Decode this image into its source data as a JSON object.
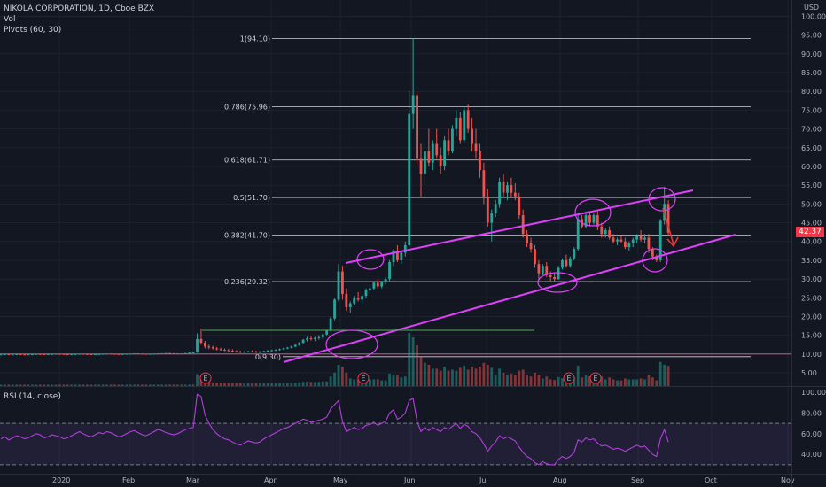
{
  "header": {
    "symbol_line": "NIKOLA CORPORATION, 1D, Cboe BZX",
    "vol_label": "Vol",
    "pivots_label": "Pivots (60, 30)",
    "currency": "USD",
    "last_price": "42.37"
  },
  "rsi": {
    "label": "RSI (14, close)"
  },
  "colors": {
    "up": "#26a69a",
    "down": "#ef5350",
    "trendline": "#e040fb",
    "rsi_line": "#b23fdc",
    "background": "#131722"
  },
  "chart_data": {
    "type": "candlestick",
    "title": "NIKOLA CORPORATION, 1D, Cboe BZX",
    "price_ticks": [
      "100.00",
      "95.00",
      "90.00",
      "85.00",
      "80.00",
      "75.00",
      "70.00",
      "65.00",
      "60.00",
      "55.00",
      "50.00",
      "45.00",
      "40.00",
      "35.00",
      "30.00",
      "25.00",
      "20.00",
      "15.00",
      "10.00",
      "5.00"
    ],
    "rsi_ticks": [
      "100.00",
      "80.00",
      "60.00",
      "40.00"
    ],
    "x_ticks": [
      "2020",
      "Feb",
      "Mar",
      "Apr",
      "May",
      "Jun",
      "Jul",
      "Aug",
      "Sep",
      "Oct",
      "Nov"
    ],
    "fib_levels": [
      {
        "label": "1(94.10)",
        "value": 94.1
      },
      {
        "label": "0.786(75.96)",
        "value": 75.96
      },
      {
        "label": "0.618(61.71)",
        "value": 61.71
      },
      {
        "label": "0.5(51.70)",
        "value": 51.7
      },
      {
        "label": "0.382(41.70)",
        "value": 41.7
      },
      {
        "label": "0.236(29.32)",
        "value": 29.32
      },
      {
        "label": "0(9.30)",
        "value": 9.3
      }
    ],
    "earnings_markers": [
      "E",
      "E",
      "E",
      "E"
    ],
    "candles": [
      [
        9.9,
        10.0,
        9.8,
        9.9
      ],
      [
        9.9,
        10.0,
        9.8,
        9.95
      ],
      [
        9.95,
        10.0,
        9.8,
        9.85
      ],
      [
        9.85,
        9.95,
        9.8,
        9.9
      ],
      [
        9.9,
        10.0,
        9.85,
        9.95
      ],
      [
        9.95,
        10.0,
        9.85,
        9.9
      ],
      [
        9.9,
        10.0,
        9.8,
        9.85
      ],
      [
        9.85,
        9.95,
        9.8,
        9.9
      ],
      [
        9.9,
        10.0,
        9.85,
        9.95
      ],
      [
        9.95,
        10.05,
        9.9,
        10.0
      ],
      [
        10.0,
        10.1,
        9.9,
        9.95
      ],
      [
        9.95,
        10.0,
        9.85,
        9.9
      ],
      [
        9.9,
        10.0,
        9.85,
        9.95
      ],
      [
        9.95,
        10.05,
        9.9,
        10.0
      ],
      [
        10.0,
        10.1,
        9.9,
        10.05
      ],
      [
        10.05,
        10.1,
        9.95,
        10.0
      ],
      [
        10.0,
        10.05,
        9.9,
        9.95
      ],
      [
        9.95,
        10.0,
        9.85,
        9.9
      ],
      [
        9.9,
        10.0,
        9.85,
        9.95
      ],
      [
        9.95,
        10.05,
        9.9,
        10.0
      ],
      [
        10.0,
        10.1,
        9.9,
        10.05
      ],
      [
        10.05,
        10.1,
        9.95,
        10.0
      ],
      [
        10.0,
        10.05,
        9.9,
        9.95
      ],
      [
        9.95,
        10.0,
        9.85,
        9.9
      ],
      [
        9.9,
        10.0,
        9.85,
        9.95
      ],
      [
        9.95,
        10.05,
        9.9,
        10.0
      ],
      [
        10.0,
        10.1,
        9.95,
        10.05
      ],
      [
        10.05,
        10.15,
        10.0,
        10.1
      ],
      [
        10.1,
        10.15,
        10.0,
        10.05
      ],
      [
        10.05,
        10.1,
        9.95,
        10.0
      ],
      [
        10.0,
        10.05,
        9.9,
        9.95
      ],
      [
        9.95,
        10.0,
        9.9,
        10.0
      ],
      [
        10.0,
        10.1,
        9.95,
        10.05
      ],
      [
        10.05,
        10.1,
        10.0,
        10.1
      ],
      [
        10.1,
        10.2,
        10.0,
        10.15
      ],
      [
        10.15,
        10.2,
        10.05,
        10.1
      ],
      [
        10.1,
        10.15,
        10.0,
        10.05
      ],
      [
        10.05,
        10.1,
        9.95,
        10.0
      ],
      [
        10.0,
        10.1,
        9.95,
        10.05
      ],
      [
        10.05,
        10.15,
        10.0,
        10.1
      ],
      [
        10.1,
        10.2,
        10.05,
        10.15
      ],
      [
        10.15,
        10.25,
        10.1,
        10.2
      ],
      [
        10.2,
        10.3,
        10.1,
        10.25
      ],
      [
        10.25,
        10.3,
        10.15,
        10.2
      ],
      [
        10.2,
        10.25,
        10.1,
        10.15
      ],
      [
        10.15,
        10.2,
        10.05,
        10.1
      ],
      [
        10.1,
        10.2,
        10.05,
        10.15
      ],
      [
        10.15,
        10.3,
        10.1,
        10.25
      ],
      [
        10.25,
        10.4,
        10.2,
        10.35
      ],
      [
        10.35,
        10.5,
        10.3,
        10.4
      ],
      [
        10.4,
        15.5,
        10.3,
        14.0
      ],
      [
        14.0,
        16.8,
        12.5,
        13.0
      ],
      [
        13.0,
        13.5,
        11.5,
        12.0
      ],
      [
        12.0,
        12.5,
        11.3,
        11.8
      ],
      [
        11.8,
        12.2,
        11.2,
        11.5
      ],
      [
        11.5,
        11.9,
        11.0,
        11.3
      ],
      [
        11.3,
        11.7,
        10.9,
        11.1
      ],
      [
        11.1,
        11.5,
        10.8,
        11.0
      ],
      [
        11.0,
        11.4,
        10.7,
        10.9
      ],
      [
        10.9,
        11.3,
        10.6,
        10.8
      ],
      [
        10.8,
        11.0,
        10.4,
        10.6
      ],
      [
        10.6,
        10.9,
        10.3,
        10.5
      ],
      [
        10.5,
        10.8,
        10.3,
        10.6
      ],
      [
        10.6,
        10.9,
        10.4,
        10.7
      ],
      [
        10.7,
        11.0,
        10.5,
        10.6
      ],
      [
        10.6,
        10.9,
        10.4,
        10.5
      ],
      [
        10.5,
        10.8,
        10.3,
        10.6
      ],
      [
        10.6,
        10.9,
        10.4,
        10.8
      ],
      [
        10.8,
        11.1,
        10.6,
        10.9
      ],
      [
        10.9,
        11.2,
        10.7,
        11.0
      ],
      [
        11.0,
        11.3,
        10.8,
        11.1
      ],
      [
        11.1,
        11.5,
        10.9,
        11.3
      ],
      [
        11.3,
        11.7,
        11.1,
        11.5
      ],
      [
        11.5,
        11.9,
        11.3,
        11.7
      ],
      [
        11.7,
        12.2,
        11.5,
        12.0
      ],
      [
        12.0,
        12.6,
        11.8,
        12.4
      ],
      [
        12.4,
        13.2,
        12.2,
        13.0
      ],
      [
        13.0,
        14.0,
        12.8,
        13.8
      ],
      [
        13.8,
        14.6,
        13.3,
        14.2
      ],
      [
        14.2,
        14.8,
        13.6,
        14.0
      ],
      [
        14.0,
        14.6,
        13.5,
        14.3
      ],
      [
        14.3,
        15.0,
        13.8,
        14.5
      ],
      [
        14.5,
        15.5,
        14.0,
        15.2
      ],
      [
        15.2,
        16.5,
        15.0,
        16.2
      ],
      [
        16.2,
        20.0,
        16.0,
        19.5
      ],
      [
        19.5,
        25.0,
        19.0,
        24.5
      ],
      [
        24.5,
        34.0,
        24.0,
        32.0
      ],
      [
        32.0,
        33.5,
        24.5,
        26.0
      ],
      [
        26.0,
        27.5,
        21.5,
        22.5
      ],
      [
        22.5,
        24.0,
        21.0,
        23.5
      ],
      [
        23.5,
        25.5,
        23.0,
        25.0
      ],
      [
        25.0,
        26.5,
        24.0,
        24.5
      ],
      [
        24.5,
        26.0,
        23.5,
        25.5
      ],
      [
        25.5,
        27.5,
        25.0,
        27.0
      ],
      [
        27.0,
        28.5,
        26.0,
        27.5
      ],
      [
        27.5,
        29.5,
        27.0,
        29.0
      ],
      [
        29.0,
        30.0,
        27.5,
        28.0
      ],
      [
        28.0,
        29.5,
        27.5,
        29.2
      ],
      [
        29.2,
        30.5,
        28.5,
        30.0
      ],
      [
        30.0,
        35.0,
        29.5,
        34.5
      ],
      [
        34.5,
        38.0,
        33.5,
        37.5
      ],
      [
        37.5,
        39.0,
        34.5,
        35.0
      ],
      [
        35.0,
        37.5,
        34.0,
        37.0
      ],
      [
        37.0,
        40.0,
        36.0,
        39.0
      ],
      [
        39.0,
        80.0,
        38.5,
        74.0
      ],
      [
        74.0,
        94.1,
        70.0,
        79.0
      ],
      [
        79.0,
        80.0,
        60.0,
        62.0
      ],
      [
        62.0,
        66.0,
        52.0,
        58.0
      ],
      [
        58.0,
        66.0,
        55.0,
        64.0
      ],
      [
        64.0,
        70.0,
        60.0,
        61.0
      ],
      [
        61.0,
        67.0,
        59.0,
        66.0
      ],
      [
        66.0,
        70.0,
        62.0,
        63.0
      ],
      [
        63.0,
        65.0,
        58.0,
        60.0
      ],
      [
        60.0,
        68.0,
        59.0,
        67.0
      ],
      [
        67.0,
        70.0,
        63.0,
        64.0
      ],
      [
        64.0,
        71.0,
        63.5,
        70.0
      ],
      [
        70.0,
        75.0,
        68.0,
        73.0
      ],
      [
        73.0,
        74.5,
        66.0,
        67.0
      ],
      [
        67.0,
        76.0,
        66.5,
        75.0
      ],
      [
        75.0,
        76.5,
        69.0,
        70.0
      ],
      [
        70.0,
        73.0,
        64.0,
        66.0
      ],
      [
        66.0,
        70.0,
        62.0,
        64.0
      ],
      [
        64.0,
        66.0,
        57.0,
        59.0
      ],
      [
        59.0,
        61.0,
        50.0,
        52.0
      ],
      [
        52.0,
        54.0,
        44.0,
        45.0
      ],
      [
        45.0,
        48.5,
        40.0,
        47.5
      ],
      [
        47.5,
        51.0,
        46.5,
        50.0
      ],
      [
        50.0,
        57.0,
        49.0,
        56.0
      ],
      [
        56.0,
        58.0,
        52.0,
        53.0
      ],
      [
        53.0,
        56.0,
        51.0,
        55.0
      ],
      [
        55.0,
        57.0,
        51.5,
        53.0
      ],
      [
        53.0,
        55.5,
        51.0,
        52.0
      ],
      [
        52.0,
        53.0,
        46.0,
        47.0
      ],
      [
        47.0,
        48.5,
        41.0,
        42.0
      ],
      [
        42.0,
        43.0,
        38.5,
        39.5
      ],
      [
        39.5,
        41.0,
        37.0,
        38.0
      ],
      [
        38.0,
        39.0,
        33.0,
        34.0
      ],
      [
        34.0,
        35.0,
        30.0,
        31.5
      ],
      [
        31.5,
        34.0,
        31.0,
        33.5
      ],
      [
        33.5,
        34.5,
        30.5,
        31.0
      ],
      [
        31.0,
        32.0,
        29.5,
        30.5
      ],
      [
        30.5,
        31.5,
        29.3,
        30.0
      ],
      [
        30.0,
        33.5,
        29.8,
        33.0
      ],
      [
        33.0,
        35.5,
        32.5,
        35.0
      ],
      [
        35.0,
        36.5,
        33.0,
        33.5
      ],
      [
        33.5,
        36.0,
        33.0,
        35.5
      ],
      [
        35.5,
        38.5,
        35.0,
        38.0
      ],
      [
        38.0,
        47.0,
        37.5,
        46.0
      ],
      [
        46.0,
        47.0,
        43.5,
        44.0
      ],
      [
        44.0,
        48.0,
        43.5,
        47.0
      ],
      [
        47.0,
        48.0,
        44.0,
        45.0
      ],
      [
        45.0,
        47.5,
        44.5,
        47.0
      ],
      [
        47.0,
        48.0,
        43.0,
        44.0
      ],
      [
        44.0,
        45.0,
        41.0,
        42.0
      ],
      [
        42.0,
        43.5,
        41.0,
        43.0
      ],
      [
        43.0,
        44.0,
        40.5,
        41.0
      ],
      [
        41.0,
        42.0,
        39.5,
        40.0
      ],
      [
        40.0,
        41.0,
        39.0,
        40.5
      ],
      [
        40.5,
        41.5,
        39.5,
        40.0
      ],
      [
        40.0,
        41.0,
        38.0,
        38.5
      ],
      [
        38.5,
        40.0,
        37.5,
        39.5
      ],
      [
        39.5,
        41.0,
        38.5,
        40.5
      ],
      [
        40.5,
        42.0,
        39.5,
        41.5
      ],
      [
        41.5,
        43.0,
        40.0,
        40.5
      ],
      [
        40.5,
        42.0,
        39.5,
        41.0
      ],
      [
        41.0,
        42.0,
        37.0,
        38.0
      ],
      [
        38.0,
        38.5,
        35.0,
        36.0
      ],
      [
        36.0,
        36.5,
        34.5,
        35.0
      ],
      [
        35.0,
        46.0,
        34.5,
        45.5
      ],
      [
        45.5,
        54.6,
        44.5,
        50.0
      ],
      [
        50.0,
        51.0,
        41.5,
        42.37
      ]
    ],
    "volume_units": "millions",
    "rsi_values": [
      55,
      57,
      54,
      56,
      58,
      57,
      55,
      56,
      58,
      60,
      59,
      56,
      57,
      59,
      58,
      57,
      55,
      56,
      58,
      60,
      62,
      60,
      58,
      57,
      59,
      61,
      60,
      62,
      61,
      59,
      57,
      58,
      60,
      62,
      63,
      61,
      59,
      58,
      60,
      62,
      64,
      63,
      61,
      60,
      59,
      60,
      62,
      64,
      65,
      66,
      98,
      96,
      78,
      70,
      64,
      60,
      57,
      55,
      54,
      52,
      50,
      49,
      51,
      53,
      52,
      51,
      52,
      55,
      57,
      59,
      61,
      63,
      65,
      66,
      68,
      70,
      72,
      74,
      73,
      71,
      72,
      73,
      74,
      76,
      84,
      88,
      92,
      72,
      62,
      64,
      66,
      64,
      65,
      68,
      69,
      71,
      68,
      70,
      72,
      80,
      83,
      74,
      76,
      80,
      92,
      94,
      72,
      62,
      66,
      63,
      66,
      64,
      62,
      66,
      64,
      67,
      70,
      65,
      69,
      67,
      62,
      60,
      56,
      50,
      43,
      48,
      52,
      58,
      55,
      57,
      55,
      53,
      47,
      42,
      38,
      36,
      32,
      30,
      33,
      31,
      30,
      30,
      35,
      38,
      36,
      38,
      42,
      54,
      52,
      56,
      54,
      55,
      51,
      48,
      49,
      47,
      45,
      46,
      45,
      43,
      45,
      47,
      49,
      47,
      48,
      44,
      40,
      38,
      55,
      64,
      52
    ]
  }
}
